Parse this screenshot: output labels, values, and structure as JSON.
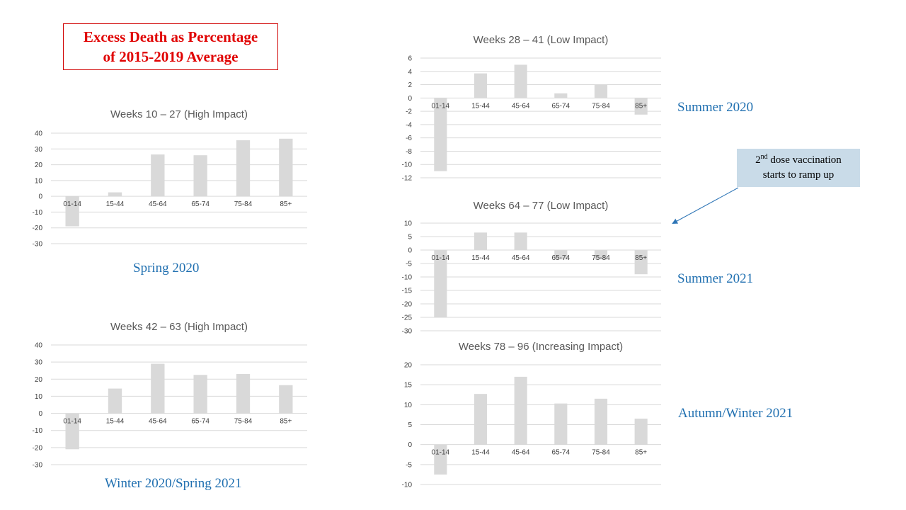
{
  "main_title": {
    "line1": "Excess Death as Percentage",
    "line2": "of 2015-2019 Average"
  },
  "season_labels": {
    "spring_2020": "Spring 2020",
    "winter_2020": "Winter 2020/Spring 2021",
    "summer_2020": "Summer 2020",
    "summer_2021": "Summer 2021",
    "autumn_2021": "Autumn/Winter 2021"
  },
  "callout": {
    "pre": "2",
    "sup": "nd",
    "line1_rest": " dose vaccination",
    "line2": "starts to ramp up"
  },
  "colors": {
    "bar": "#d9d9d9",
    "grid": "#d9d9d9",
    "title_red": "#e00000",
    "season_blue": "#1f6fb0",
    "callout_bg": "#c9dbe8",
    "arrow": "#2e75b6"
  },
  "chart_data": [
    {
      "type": "bar",
      "title": "Weeks 10 – 27 (High Impact)",
      "categories": [
        "01-14",
        "15-44",
        "45-64",
        "65-74",
        "75-84",
        "85+"
      ],
      "values": [
        -19,
        2.5,
        26.5,
        26,
        35.5,
        36.5
      ],
      "yticks": [
        40,
        30,
        20,
        10,
        0,
        -10,
        -20,
        -30
      ],
      "ylim": [
        -30,
        40
      ],
      "xlabel": "",
      "ylabel": "",
      "grid": true
    },
    {
      "type": "bar",
      "title": "Weeks 42 – 63 (High Impact)",
      "categories": [
        "01-14",
        "15-44",
        "45-64",
        "65-74",
        "75-84",
        "85+"
      ],
      "values": [
        -21,
        14.5,
        29,
        22.5,
        23,
        16.5
      ],
      "yticks": [
        40,
        30,
        20,
        10,
        0,
        -10,
        -20,
        -30
      ],
      "ylim": [
        -30,
        40
      ],
      "xlabel": "",
      "ylabel": "",
      "grid": true
    },
    {
      "type": "bar",
      "title": "Weeks 28 – 41 (Low Impact)",
      "categories": [
        "01-14",
        "15-44",
        "45-64",
        "65-74",
        "75-84",
        "85+"
      ],
      "values": [
        -11,
        3.7,
        5,
        0.7,
        2,
        -2.5
      ],
      "yticks": [
        6,
        4,
        2,
        0,
        -2,
        -4,
        -6,
        -8,
        -10,
        -12
      ],
      "ylim": [
        -12,
        6
      ],
      "xlabel": "",
      "ylabel": "",
      "grid": true
    },
    {
      "type": "bar",
      "title": "Weeks 64 – 77 (Low Impact)",
      "categories": [
        "01-14",
        "15-44",
        "45-64",
        "65-74",
        "75-84",
        "85+"
      ],
      "values": [
        -25,
        6.5,
        6.5,
        -3.5,
        -3.5,
        -9
      ],
      "yticks": [
        10,
        5,
        0,
        -5,
        -10,
        -15,
        -20,
        -25,
        -30
      ],
      "ylim": [
        -30,
        10
      ],
      "xlabel": "",
      "ylabel": "",
      "grid": true
    },
    {
      "type": "bar",
      "title": "Weeks 78 – 96 (Increasing Impact)",
      "categories": [
        "01-14",
        "15-44",
        "45-64",
        "65-74",
        "75-84",
        "85+"
      ],
      "values": [
        -7.5,
        12.7,
        17,
        10.3,
        11.5,
        6.5
      ],
      "yticks": [
        20,
        15,
        10,
        5,
        0,
        -5,
        -10
      ],
      "ylim": [
        -10,
        20
      ],
      "xlabel": "",
      "ylabel": "",
      "grid": true
    }
  ]
}
